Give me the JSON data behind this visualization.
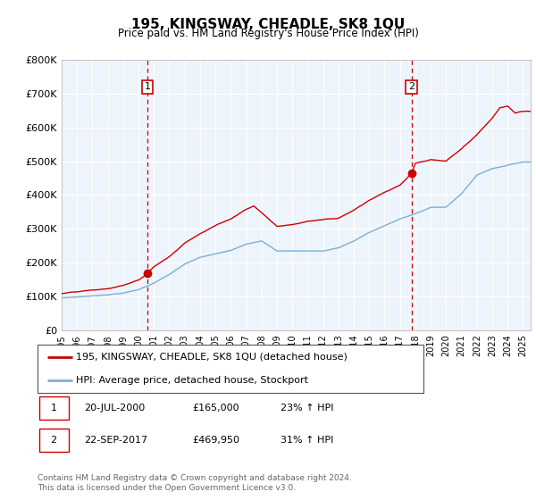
{
  "title": "195, KINGSWAY, CHEADLE, SK8 1QU",
  "subtitle": "Price paid vs. HM Land Registry's House Price Index (HPI)",
  "ylim": [
    0,
    800000
  ],
  "yticks": [
    0,
    100000,
    200000,
    300000,
    400000,
    500000,
    600000,
    700000,
    800000
  ],
  "ytick_labels": [
    "£0",
    "£100K",
    "£200K",
    "£300K",
    "£400K",
    "£500K",
    "£600K",
    "£700K",
    "£800K"
  ],
  "sale1_year": 2000.583,
  "sale1_price": 165000,
  "sale1_label": "20-JUL-2000",
  "sale1_pct": "23% ↑ HPI",
  "sale2_year": 2017.75,
  "sale2_price": 469950,
  "sale2_label": "22-SEP-2017",
  "sale2_pct": "31% ↑ HPI",
  "legend_line1": "195, KINGSWAY, CHEADLE, SK8 1QU (detached house)",
  "legend_line2": "HPI: Average price, detached house, Stockport",
  "footnote1": "Contains HM Land Registry data © Crown copyright and database right 2024.",
  "footnote2": "This data is licensed under the Open Government Licence v3.0.",
  "line_color_red": "#cc0000",
  "line_color_blue": "#7bafd4",
  "fill_color_blue": "#ddeeff",
  "vline_color": "#cc0000",
  "bg_color": "#ffffff",
  "plot_bg": "#eef4fb",
  "grid_color": "#ffffff",
  "num_box_color": "#cc0000"
}
